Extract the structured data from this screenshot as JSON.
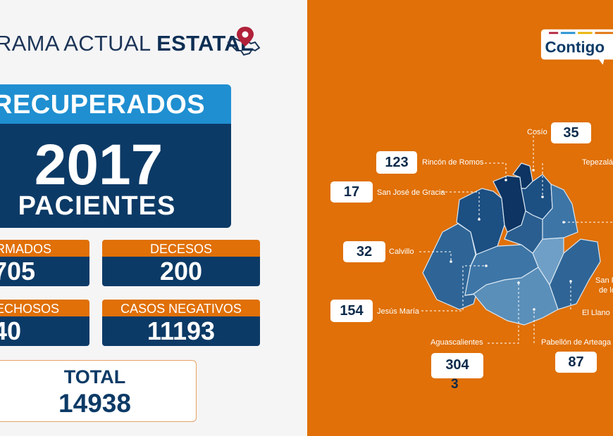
{
  "header": {
    "title_regular": "RAMA ACTUAL ",
    "title_bold": "ESTATAL"
  },
  "recovered": {
    "label": "RECUPERADOS",
    "value": "2017",
    "unit": "PACIENTES"
  },
  "stats": {
    "confirmed": {
      "label": "RMADOS",
      "value": "705"
    },
    "deaths": {
      "label": "DECESOS",
      "value": "200"
    },
    "suspected": {
      "label": "ECHOSOS",
      "value": "40"
    },
    "negatives": {
      "label": "CASOS NEGATIVOS",
      "value": "11193"
    }
  },
  "total": {
    "label": "TOTAL",
    "value": "14938"
  },
  "brand": {
    "logo_text": "Contigo"
  },
  "map": {
    "municipalities": [
      {
        "name": "Cosío",
        "count": "35"
      },
      {
        "name": "Rincón de Romos",
        "count": "123"
      },
      {
        "name": "Tepezalá",
        "count": ""
      },
      {
        "name": "San José de Gracia",
        "count": "17"
      },
      {
        "name": "Calvillo",
        "count": "32"
      },
      {
        "name": "Jesús María",
        "count": "154"
      },
      {
        "name": "Aguascalientes",
        "count": "304",
        "count_extra": "3"
      },
      {
        "name": "Pabellón de Arteaga",
        "count": "87"
      },
      {
        "name": "El Llano",
        "count": ""
      },
      {
        "name": "San F",
        "name_line2": "de lo",
        "count": ""
      }
    ]
  },
  "colors": {
    "orange": "#e07007",
    "navy": "#0c3a66",
    "blue": "#1f8fd1",
    "background": "#f5f5f6"
  }
}
